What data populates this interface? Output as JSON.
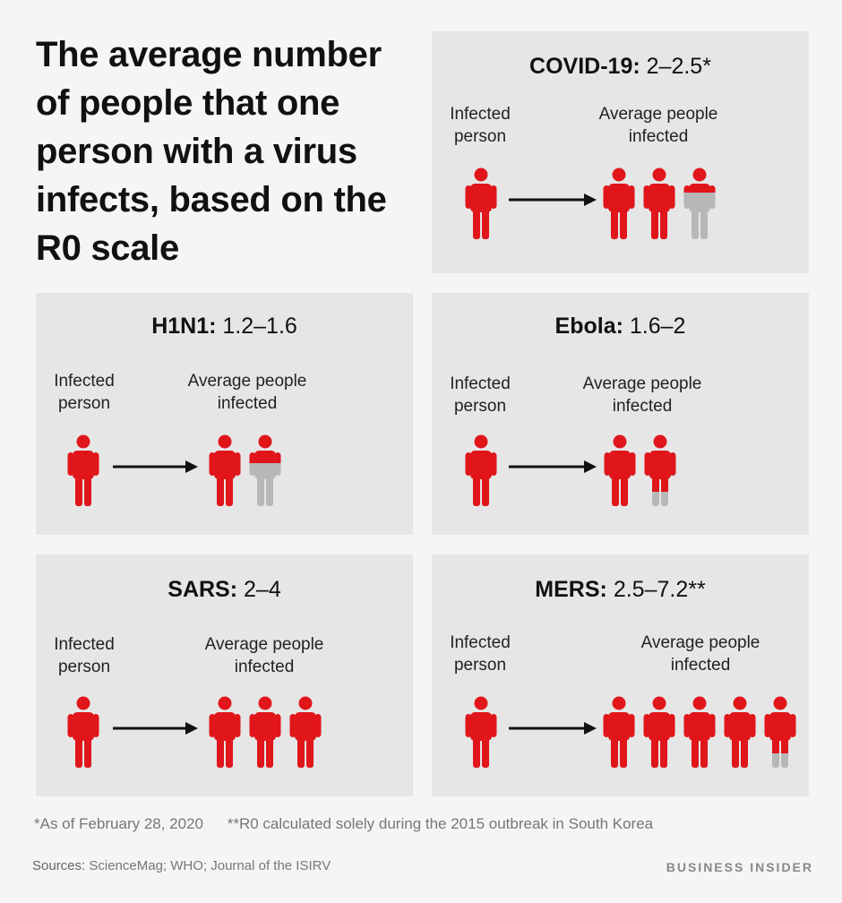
{
  "title": "The average number of people that one person with a virus infects, based on the R0 scale",
  "colors": {
    "infected": "#e0161b",
    "uninfected": "#b7b7b7",
    "panel": "#e6e6e6"
  },
  "panels": [
    {
      "id": "covid",
      "name": "COVID-19:",
      "range": "2–2.5*",
      "infected_label": "Infected person",
      "average_label": "Average people infected",
      "people_fill": [
        1,
        1,
        0.35
      ]
    },
    {
      "id": "h1n1",
      "name": "H1N1:",
      "range": "1.2–1.6",
      "infected_label": "Infected person",
      "average_label": "Average people infected",
      "people_fill": [
        1,
        0.4
      ]
    },
    {
      "id": "ebola",
      "name": "Ebola:",
      "range": "1.6–2",
      "infected_label": "Infected person",
      "average_label": "Average people infected",
      "people_fill": [
        1,
        0.8
      ]
    },
    {
      "id": "sars",
      "name": "SARS:",
      "range": "2–4",
      "infected_label": "Infected person",
      "average_label": "Average people infected",
      "people_fill": [
        1,
        1,
        1
      ]
    },
    {
      "id": "mers",
      "name": "MERS:",
      "range": "2.5–7.2**",
      "infected_label": "Infected person",
      "average_label": "Average people infected",
      "people_fill": [
        1,
        1,
        1,
        1,
        0.8
      ]
    }
  ],
  "footnotes": {
    "note1": "*As of February 28, 2020",
    "note2": "**R0 calculated solely during the 2015 outbreak in South Korea"
  },
  "sources": {
    "label": "Sources:",
    "text": "ScienceMag; WHO; Journal of the ISIRV"
  },
  "brand": "BUSINESS INSIDER"
}
